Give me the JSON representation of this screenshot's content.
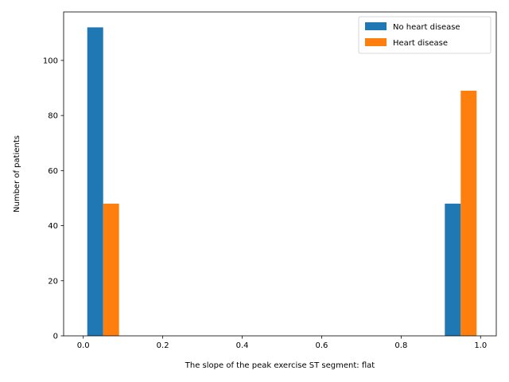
{
  "chart_data": {
    "type": "bar",
    "xlabel": "The slope of the peak exercise ST segment: flat",
    "ylabel": "Number of patients",
    "xlim": [
      -0.0495,
      1.0395
    ],
    "ylim": [
      0,
      117.6
    ],
    "xticks": [
      0.0,
      0.2,
      0.4,
      0.6,
      0.8,
      1.0
    ],
    "xtick_labels": [
      "0.0",
      "0.2",
      "0.4",
      "0.6",
      "0.8",
      "1.0"
    ],
    "yticks": [
      0,
      20,
      40,
      60,
      80,
      100
    ],
    "ytick_labels": [
      "0",
      "20",
      "40",
      "60",
      "80",
      "100"
    ],
    "legend_position": "top-right",
    "bin_width": 0.04,
    "series": [
      {
        "name": "No heart disease",
        "color": "#1f77b4",
        "bins": [
          {
            "x_start": 0.01,
            "value": 112
          },
          {
            "x_start": 0.91,
            "value": 48
          }
        ]
      },
      {
        "name": "Heart disease",
        "color": "#ff7f0e",
        "bins": [
          {
            "x_start": 0.05,
            "value": 48
          },
          {
            "x_start": 0.95,
            "value": 89
          }
        ]
      }
    ]
  }
}
